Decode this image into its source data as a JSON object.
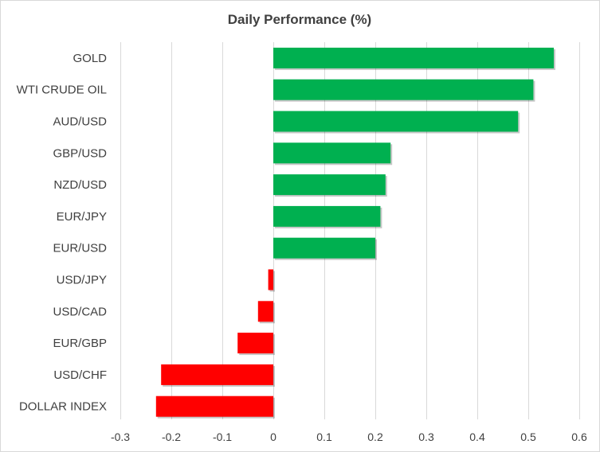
{
  "chart_data": {
    "type": "bar",
    "orientation": "horizontal",
    "title": "Daily Performance  (%)",
    "xlabel": "",
    "ylabel": "",
    "xlim": [
      -0.3,
      0.6
    ],
    "ticks": [
      "-0.3",
      "-0.2",
      "-0.1",
      "0",
      "0.1",
      "0.2",
      "0.3",
      "0.4",
      "0.5",
      "0.6"
    ],
    "grid": "vertical",
    "legend": "none",
    "categories": [
      "GOLD",
      "WTI CRUDE OIL",
      "AUD/USD",
      "GBP/USD",
      "NZD/USD",
      "EUR/JPY",
      "EUR/USD",
      "USD/JPY",
      "USD/CAD",
      "EUR/GBP",
      "USD/CHF",
      "DOLLAR INDEX"
    ],
    "values": [
      0.55,
      0.51,
      0.48,
      0.23,
      0.22,
      0.21,
      0.2,
      -0.01,
      -0.03,
      -0.07,
      -0.22,
      -0.23
    ],
    "colors": {
      "positive": "#00b050",
      "negative": "#ff0000",
      "grid": "#d9d9d9",
      "text": "#404040"
    }
  }
}
